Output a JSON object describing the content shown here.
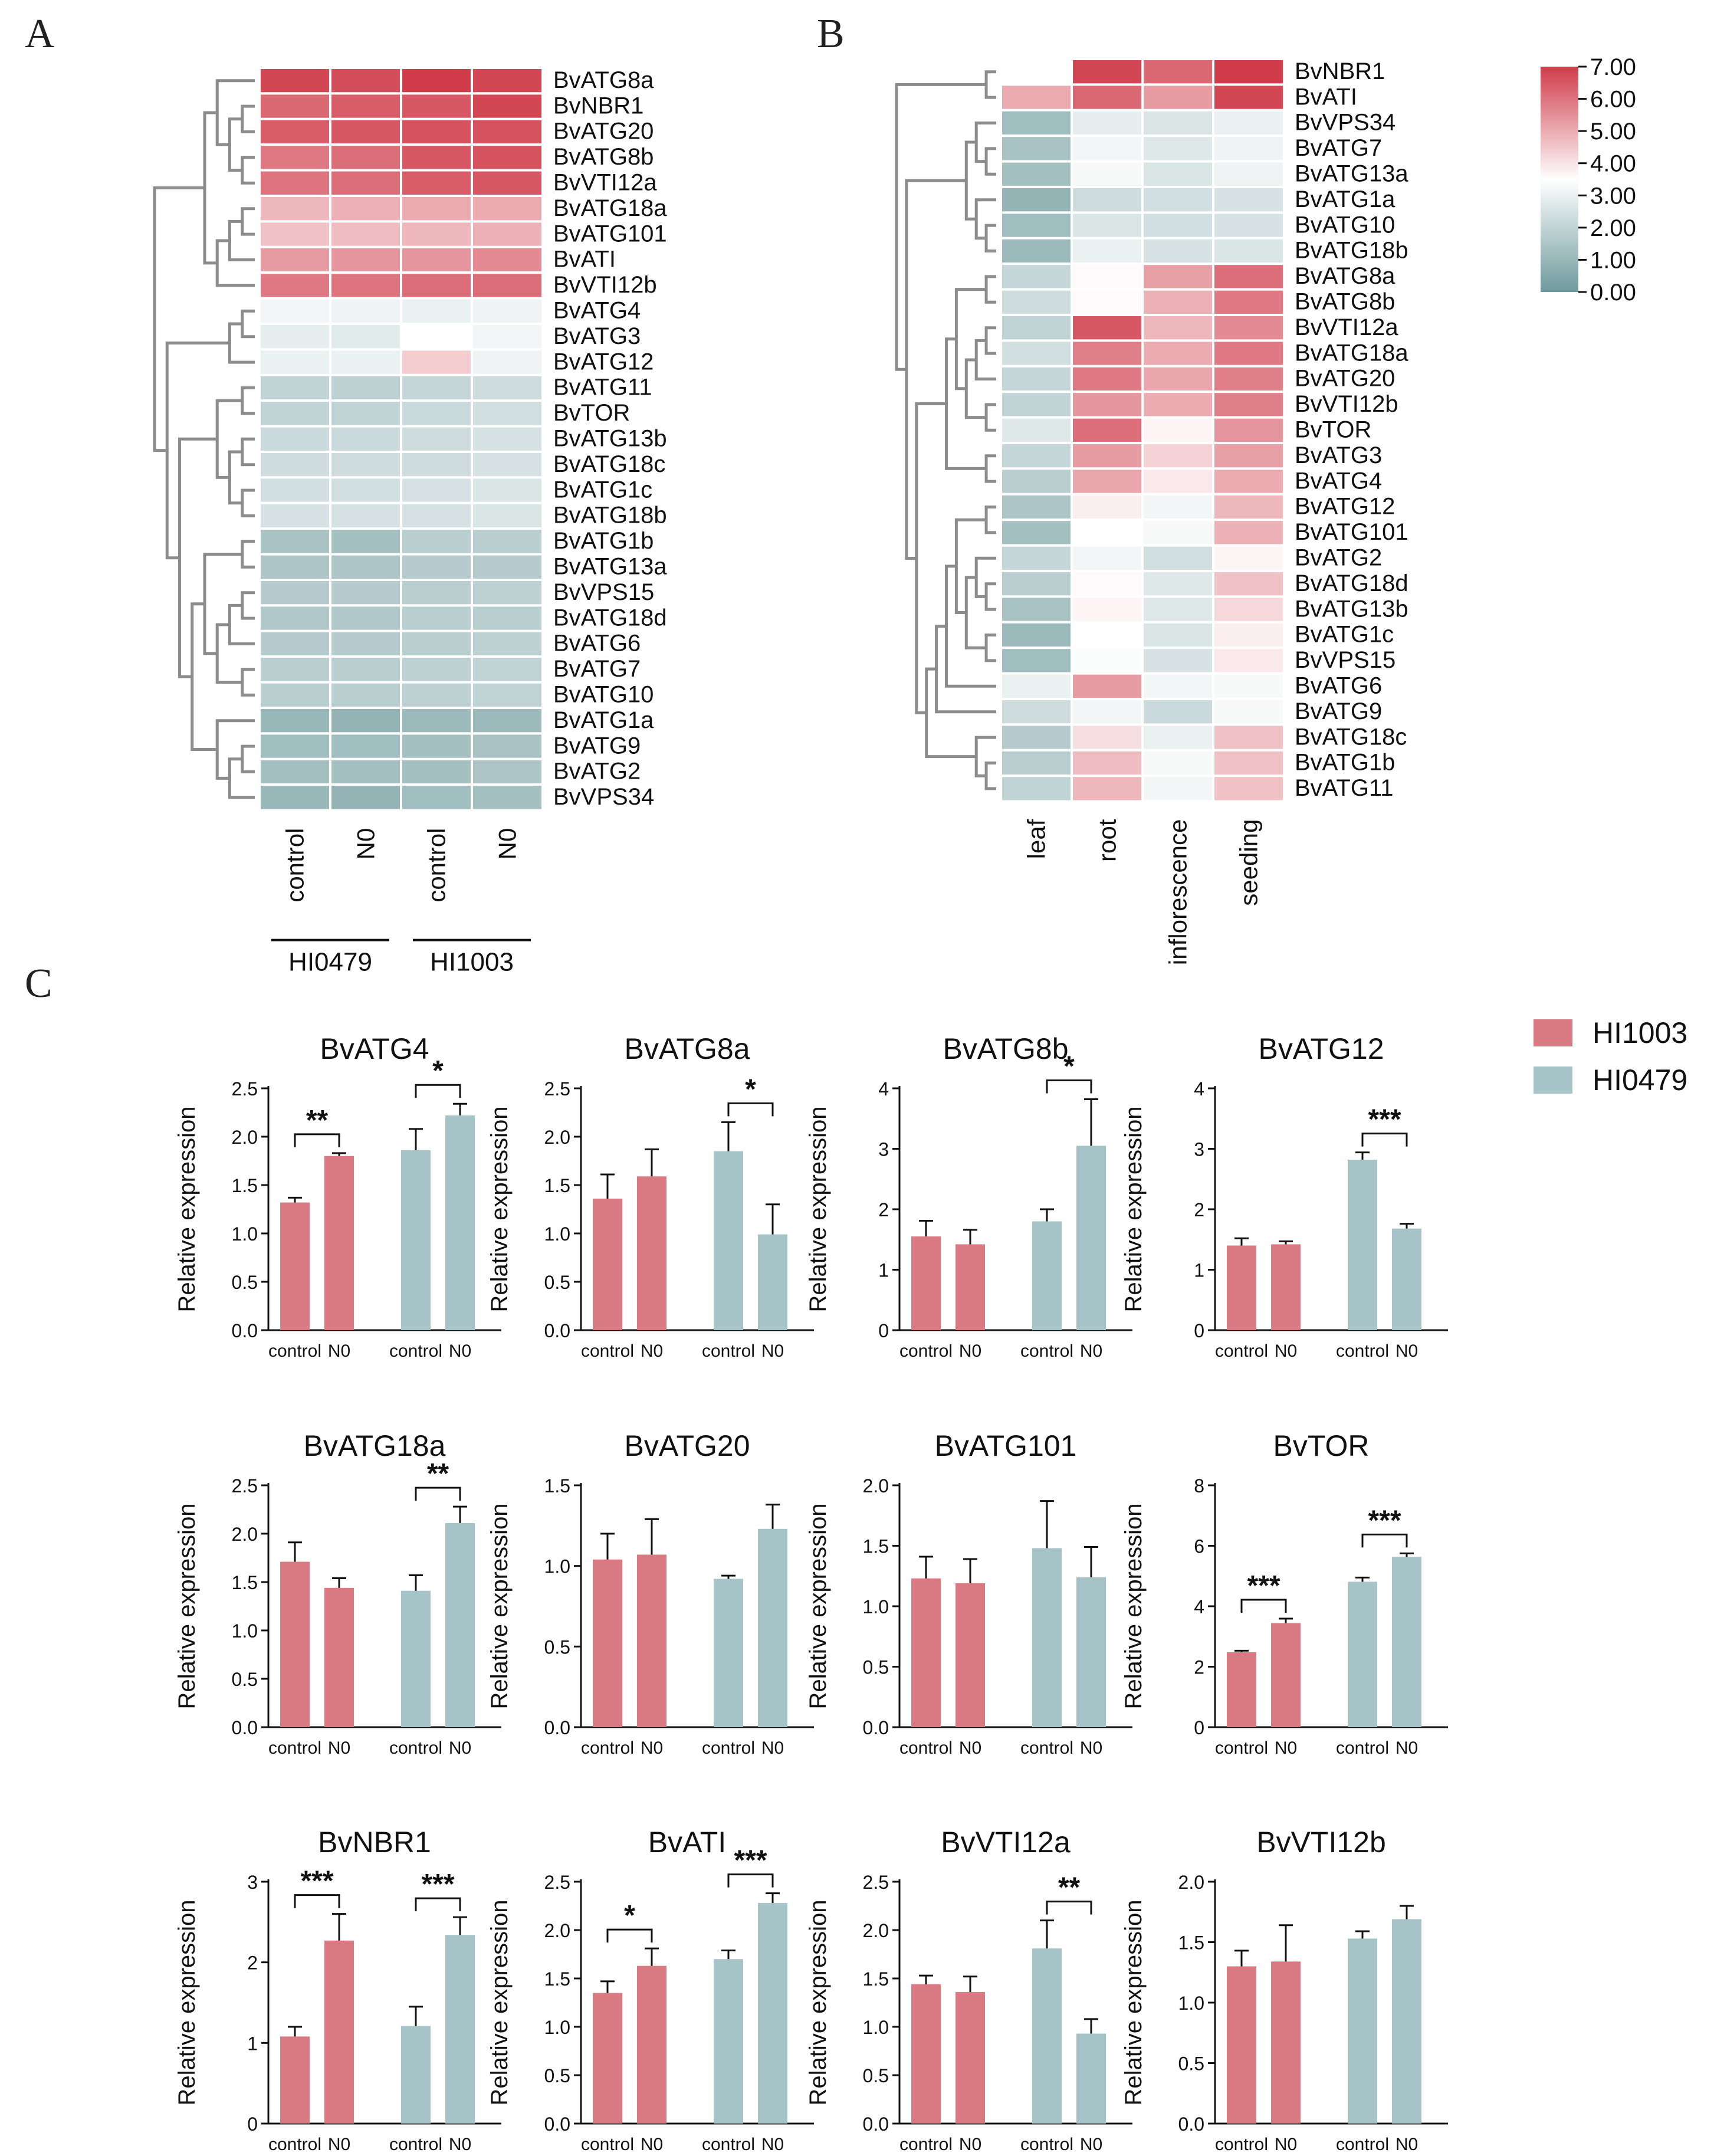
{
  "panel_labels": [
    "A",
    "B",
    "C"
  ],
  "colors": {
    "high": "#d03c4a",
    "mid": "#ffffff",
    "low": "#6f9a9d",
    "hi1003": "#d97a82",
    "hi0479": "#a6c4c7",
    "tree": "#8c8c8c"
  },
  "colorbar": {
    "ticks": [
      "7.00",
      "6.00",
      "5.00",
      "4.00",
      "3.00",
      "2.00",
      "1.00",
      "0.00"
    ],
    "min": 0,
    "max": 7
  },
  "chart_data": [
    {
      "type": "heatmap",
      "panel": "A",
      "rows": [
        "BvATG8a",
        "BvNBR1",
        "BvATG20",
        "BvATG8b",
        "BvVTI12a",
        "BvATG18a",
        "BvATG101",
        "BvATI",
        "BvVTI12b",
        "BvATG4",
        "BvATG3",
        "BvATG12",
        "BvATG11",
        "BvTOR",
        "BvATG13b",
        "BvATG18c",
        "BvATG1c",
        "BvATG18b",
        "BvATG1b",
        "BvATG13a",
        "BvVPS15",
        "BvATG18d",
        "BvATG6",
        "BvATG7",
        "BvATG10",
        "BvATG1a",
        "BvATG9",
        "BvATG2",
        "BvVPS34"
      ],
      "columns": [
        "control",
        "N0",
        "control",
        "N0"
      ],
      "column_groups": [
        {
          "name": "HI0479",
          "columns": [
            0,
            1
          ]
        },
        {
          "name": "HI1003",
          "columns": [
            2,
            3
          ]
        }
      ],
      "values": [
        [
          6.8,
          6.7,
          7.0,
          6.8
        ],
        [
          6.2,
          6.4,
          6.5,
          6.8
        ],
        [
          6.4,
          6.5,
          6.6,
          6.6
        ],
        [
          5.9,
          6.1,
          6.5,
          6.6
        ],
        [
          6.0,
          6.1,
          6.4,
          6.5
        ],
        [
          4.8,
          4.9,
          5.0,
          5.0
        ],
        [
          4.6,
          4.7,
          4.8,
          4.9
        ],
        [
          5.3,
          5.4,
          5.4,
          5.6
        ],
        [
          5.9,
          6.0,
          6.1,
          6.1
        ],
        [
          3.2,
          3.1,
          3.0,
          3.1
        ],
        [
          2.9,
          2.8,
          3.5,
          3.2
        ],
        [
          3.0,
          3.0,
          4.4,
          3.1
        ],
        [
          2.0,
          1.9,
          2.1,
          2.3
        ],
        [
          2.0,
          2.0,
          2.2,
          2.4
        ],
        [
          2.2,
          2.2,
          2.3,
          2.5
        ],
        [
          2.3,
          2.3,
          2.3,
          2.5
        ],
        [
          2.4,
          2.4,
          2.5,
          2.6
        ],
        [
          2.5,
          2.5,
          2.5,
          2.6
        ],
        [
          1.4,
          1.3,
          1.8,
          1.8
        ],
        [
          1.5,
          1.5,
          1.7,
          1.7
        ],
        [
          1.7,
          1.7,
          1.8,
          1.9
        ],
        [
          1.6,
          1.6,
          1.8,
          1.8
        ],
        [
          1.7,
          1.7,
          1.8,
          1.9
        ],
        [
          1.8,
          1.8,
          1.9,
          2.0
        ],
        [
          1.8,
          1.8,
          1.9,
          2.0
        ],
        [
          1.0,
          0.9,
          1.1,
          1.1
        ],
        [
          1.2,
          1.2,
          1.3,
          1.4
        ],
        [
          1.3,
          1.3,
          1.3,
          1.5
        ],
        [
          1.0,
          0.9,
          1.2,
          1.3
        ]
      ]
    },
    {
      "type": "heatmap",
      "panel": "B",
      "rows": [
        "BvNBR1",
        "BvATI",
        "BvVPS34",
        "BvATG7",
        "BvATG13a",
        "BvATG1a",
        "BvATG10",
        "BvATG18b",
        "BvATG8a",
        "BvATG8b",
        "BvVTI12a",
        "BvATG18a",
        "BvATG20",
        "BvVTI12b",
        "BvTOR",
        "BvATG3",
        "BvATG4",
        "BvATG12",
        "BvATG101",
        "BvATG2",
        "BvATG18d",
        "BvATG13b",
        "BvATG1c",
        "BvVPS15",
        "BvATG6",
        "BvATG9",
        "BvATG18c",
        "BvATG1b",
        "BvATG11"
      ],
      "columns": [
        "leaf",
        "root",
        "inflorescence",
        "seeding"
      ],
      "values": [
        [
          3.5,
          6.8,
          6.2,
          7.0
        ],
        [
          5.0,
          6.2,
          5.3,
          6.8
        ],
        [
          1.2,
          2.9,
          2.6,
          3.0
        ],
        [
          1.4,
          3.2,
          2.7,
          3.1
        ],
        [
          1.3,
          3.3,
          2.6,
          3.1
        ],
        [
          0.9,
          2.3,
          2.4,
          2.5
        ],
        [
          1.2,
          2.6,
          2.4,
          2.5
        ],
        [
          1.1,
          3.0,
          2.5,
          2.6
        ],
        [
          2.1,
          3.6,
          5.2,
          6.1
        ],
        [
          2.3,
          3.6,
          4.9,
          5.9
        ],
        [
          2.0,
          6.5,
          4.8,
          5.6
        ],
        [
          2.4,
          5.8,
          5.0,
          5.9
        ],
        [
          2.1,
          5.9,
          5.1,
          5.8
        ],
        [
          2.0,
          5.4,
          5.0,
          5.8
        ],
        [
          2.7,
          6.1,
          3.7,
          5.4
        ],
        [
          2.1,
          5.3,
          4.3,
          5.2
        ],
        [
          1.8,
          5.1,
          3.9,
          5.0
        ],
        [
          1.5,
          3.8,
          3.2,
          4.8
        ],
        [
          1.3,
          3.5,
          3.3,
          4.9
        ],
        [
          2.1,
          3.2,
          2.4,
          3.7
        ],
        [
          1.8,
          3.6,
          2.7,
          4.6
        ],
        [
          1.4,
          3.7,
          2.7,
          4.2
        ],
        [
          1.1,
          3.5,
          2.6,
          3.8
        ],
        [
          1.2,
          3.4,
          2.5,
          3.9
        ],
        [
          3.0,
          5.3,
          3.2,
          3.3
        ],
        [
          2.3,
          3.2,
          2.2,
          3.3
        ],
        [
          1.7,
          4.1,
          3.0,
          4.6
        ],
        [
          1.8,
          4.7,
          3.3,
          4.6
        ],
        [
          2.0,
          4.8,
          3.2,
          4.6
        ]
      ]
    },
    {
      "type": "bar",
      "panel": "C",
      "legend": [
        {
          "name": "HI1003",
          "color": "#d97a82"
        },
        {
          "name": "HI0479",
          "color": "#a6c4c7"
        }
      ],
      "ylabel": "Relative expression",
      "tick_labels": [
        "control",
        "N0",
        "control",
        "N0"
      ],
      "plots": [
        {
          "title": "BvATG4",
          "ylim": [
            0,
            2.5
          ],
          "yticks": [
            "0.0",
            "0.5",
            "1.0",
            "1.5",
            "2.0",
            "2.5"
          ],
          "values": [
            1.32,
            1.8,
            1.86,
            2.22
          ],
          "errors": [
            0.05,
            0.03,
            0.22,
            0.12
          ],
          "sig": [
            {
              "between": [
                0,
                1
              ],
              "label": "**"
            },
            {
              "between": [
                2,
                3
              ],
              "label": "*"
            }
          ]
        },
        {
          "title": "BvATG8a",
          "ylim": [
            0,
            2.5
          ],
          "yticks": [
            "0.0",
            "0.5",
            "1.0",
            "1.5",
            "2.0",
            "2.5"
          ],
          "values": [
            1.36,
            1.59,
            1.85,
            0.99
          ],
          "errors": [
            0.25,
            0.28,
            0.3,
            0.31
          ],
          "sig": [
            {
              "between": [
                2,
                3
              ],
              "label": "*"
            }
          ]
        },
        {
          "title": "BvATG8b",
          "ylim": [
            0,
            4
          ],
          "yticks": [
            "0",
            "1",
            "2",
            "3",
            "4"
          ],
          "values": [
            1.55,
            1.42,
            1.8,
            3.05
          ],
          "errors": [
            0.26,
            0.24,
            0.2,
            0.77
          ],
          "sig": [
            {
              "between": [
                2,
                3
              ],
              "label": "*"
            }
          ]
        },
        {
          "title": "BvATG12",
          "ylim": [
            0,
            4
          ],
          "yticks": [
            "0",
            "1",
            "2",
            "3",
            "4"
          ],
          "values": [
            1.4,
            1.42,
            2.82,
            1.68
          ],
          "errors": [
            0.12,
            0.05,
            0.12,
            0.08
          ],
          "sig": [
            {
              "between": [
                2,
                3
              ],
              "label": "***"
            }
          ]
        },
        {
          "title": "BvATG18a",
          "ylim": [
            0,
            2.5
          ],
          "yticks": [
            "0.0",
            "0.5",
            "1.0",
            "1.5",
            "2.0",
            "2.5"
          ],
          "values": [
            1.71,
            1.44,
            1.41,
            2.11
          ],
          "errors": [
            0.2,
            0.1,
            0.16,
            0.17
          ],
          "sig": [
            {
              "between": [
                2,
                3
              ],
              "label": "**"
            }
          ]
        },
        {
          "title": "BvATG20",
          "ylim": [
            0,
            1.5
          ],
          "yticks": [
            "0.0",
            "0.5",
            "1.0",
            "1.5"
          ],
          "values": [
            1.04,
            1.07,
            0.92,
            1.23
          ],
          "errors": [
            0.16,
            0.22,
            0.02,
            0.15
          ],
          "sig": []
        },
        {
          "title": "BvATG101",
          "ylim": [
            0,
            2.0
          ],
          "yticks": [
            "0.0",
            "0.5",
            "1.0",
            "1.5",
            "2.0"
          ],
          "values": [
            1.23,
            1.19,
            1.48,
            1.24
          ],
          "errors": [
            0.18,
            0.2,
            0.39,
            0.25
          ],
          "sig": []
        },
        {
          "title": "BvTOR",
          "ylim": [
            0,
            8
          ],
          "yticks": [
            "0",
            "2",
            "4",
            "6",
            "8"
          ],
          "values": [
            2.48,
            3.44,
            4.81,
            5.63
          ],
          "errors": [
            0.05,
            0.15,
            0.14,
            0.12
          ],
          "sig": [
            {
              "between": [
                0,
                1
              ],
              "label": "***"
            },
            {
              "between": [
                2,
                3
              ],
              "label": "***"
            }
          ]
        },
        {
          "title": "BvNBR1",
          "ylim": [
            0,
            3
          ],
          "yticks": [
            "0",
            "1",
            "2",
            "3"
          ],
          "values": [
            1.08,
            2.27,
            1.21,
            2.34
          ],
          "errors": [
            0.12,
            0.33,
            0.24,
            0.22
          ],
          "sig": [
            {
              "between": [
                0,
                1
              ],
              "label": "***"
            },
            {
              "between": [
                2,
                3
              ],
              "label": "***"
            }
          ]
        },
        {
          "title": "BvATI",
          "ylim": [
            0,
            2.5
          ],
          "yticks": [
            "0.0",
            "0.5",
            "1.0",
            "1.5",
            "2.0",
            "2.5"
          ],
          "values": [
            1.35,
            1.63,
            1.7,
            2.28
          ],
          "errors": [
            0.12,
            0.18,
            0.09,
            0.1
          ],
          "sig": [
            {
              "between": [
                0,
                1
              ],
              "label": "*"
            },
            {
              "between": [
                2,
                3
              ],
              "label": "***"
            }
          ]
        },
        {
          "title": "BvVTI12a",
          "ylim": [
            0,
            2.5
          ],
          "yticks": [
            "0.0",
            "0.5",
            "1.0",
            "1.5",
            "2.0",
            "2.5"
          ],
          "values": [
            1.44,
            1.36,
            1.81,
            0.93
          ],
          "errors": [
            0.09,
            0.16,
            0.29,
            0.15
          ],
          "sig": [
            {
              "between": [
                2,
                3
              ],
              "label": "**"
            }
          ]
        },
        {
          "title": "BvVTI12b",
          "ylim": [
            0,
            2.0
          ],
          "yticks": [
            "0.0",
            "0.5",
            "1.0",
            "1.5",
            "2.0"
          ],
          "values": [
            1.3,
            1.34,
            1.53,
            1.69
          ],
          "errors": [
            0.13,
            0.3,
            0.06,
            0.11
          ],
          "sig": []
        }
      ]
    }
  ]
}
